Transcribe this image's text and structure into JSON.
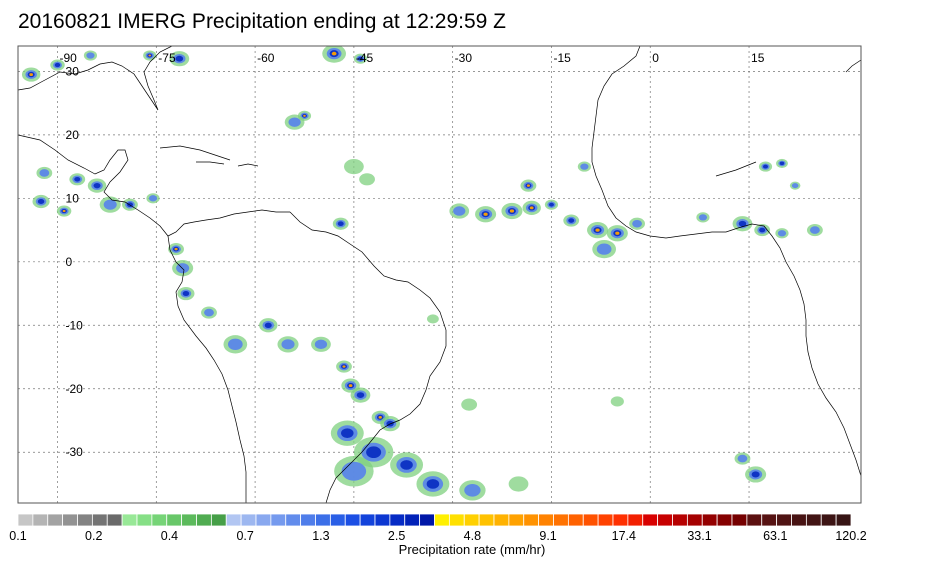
{
  "title": "20160821 IMERG Precipitation ending at 12:29:59 Z",
  "map": {
    "projection": "equirectangular",
    "lon_range": [
      -96,
      32
    ],
    "lat_range": [
      -38,
      34
    ],
    "lon_ticks": [
      {
        "value": -90,
        "label": "-90"
      },
      {
        "value": -75,
        "label": "-75"
      },
      {
        "value": -60,
        "label": "-60"
      },
      {
        "value": -45,
        "label": "-45"
      },
      {
        "value": -30,
        "label": "-30"
      },
      {
        "value": -15,
        "label": "-15"
      },
      {
        "value": 0,
        "label": "0"
      },
      {
        "value": 15,
        "label": "15"
      }
    ],
    "lat_ticks": [
      {
        "value": 30,
        "label": "30"
      },
      {
        "value": 20,
        "label": "20"
      },
      {
        "value": 10,
        "label": "10"
      },
      {
        "value": 0,
        "label": "0"
      },
      {
        "value": -10,
        "label": "-10"
      },
      {
        "value": -20,
        "label": "-20"
      },
      {
        "value": -30,
        "label": "-30"
      }
    ],
    "gridlines": "dotted",
    "coastline_color": "#000000"
  },
  "colorbar": {
    "title": "Precipitation rate (mm/hr)",
    "colors": [
      "#c6c6c6",
      "#b4b4b4",
      "#a3a3a3",
      "#929292",
      "#838383",
      "#747474",
      "#6a6a6a",
      "#98e897",
      "#86df86",
      "#76d477",
      "#68c769",
      "#5cba5c",
      "#50ac51",
      "#469f48",
      "#b2c6f2",
      "#9db7f0",
      "#89a8ef",
      "#759aee",
      "#628cec",
      "#4f7dea",
      "#3c6fe8",
      "#2a5fe6",
      "#1c4fe4",
      "#1343db",
      "#0c37d1",
      "#062bc5",
      "#0121b8",
      "#0018a8",
      "#fff000",
      "#ffe000",
      "#ffd000",
      "#ffc200",
      "#ffb200",
      "#ffa200",
      "#ff9200",
      "#ff8200",
      "#ff7200",
      "#ff6200",
      "#ff5200",
      "#ff4200",
      "#ff3000",
      "#f21f00",
      "#d80000",
      "#c70000",
      "#b60000",
      "#a50000",
      "#940000",
      "#850000",
      "#760000",
      "#5c1010",
      "#561212",
      "#4f1313",
      "#481313",
      "#421414",
      "#3c1414",
      "#361414"
    ],
    "tick_labels": [
      "0.1",
      "0.2",
      "0.4",
      "0.7",
      "1.3",
      "2.5",
      "4.8",
      "9.1",
      "17.4",
      "33.1",
      "63.1",
      "120.2"
    ]
  },
  "precip_cells": [
    {
      "lon": -94.0,
      "lat": 29.5,
      "r": 1.4,
      "level": 3
    },
    {
      "lon": -90.0,
      "lat": 31.0,
      "r": 1.1,
      "level": 2
    },
    {
      "lon": -85.0,
      "lat": 32.5,
      "r": 1.0,
      "level": 1
    },
    {
      "lon": -76.0,
      "lat": 32.5,
      "r": 1.0,
      "level": 3
    },
    {
      "lon": -71.5,
      "lat": 32.0,
      "r": 1.5,
      "level": 2
    },
    {
      "lon": -48.0,
      "lat": 32.8,
      "r": 1.8,
      "level": 3
    },
    {
      "lon": -44.0,
      "lat": 32.0,
      "r": 1.0,
      "level": 2
    },
    {
      "lon": -52.5,
      "lat": 23.0,
      "r": 1.0,
      "level": 3
    },
    {
      "lon": -54.0,
      "lat": 22.0,
      "r": 1.5,
      "level": 1
    },
    {
      "lon": -45.0,
      "lat": 15.0,
      "r": 1.5,
      "level": 0
    },
    {
      "lon": -43.0,
      "lat": 13.0,
      "r": 1.2,
      "level": 0
    },
    {
      "lon": -92.0,
      "lat": 14.0,
      "r": 1.2,
      "level": 1
    },
    {
      "lon": -87.0,
      "lat": 13.0,
      "r": 1.2,
      "level": 2
    },
    {
      "lon": -84.0,
      "lat": 12.0,
      "r": 1.4,
      "level": 2
    },
    {
      "lon": -92.5,
      "lat": 9.5,
      "r": 1.3,
      "level": 2
    },
    {
      "lon": -89.0,
      "lat": 8.0,
      "r": 1.1,
      "level": 3
    },
    {
      "lon": -82.0,
      "lat": 9.0,
      "r": 1.6,
      "level": 1
    },
    {
      "lon": -79.0,
      "lat": 9.0,
      "r": 1.2,
      "level": 2
    },
    {
      "lon": -75.5,
      "lat": 10.0,
      "r": 1.0,
      "level": 1
    },
    {
      "lon": -72.0,
      "lat": 2.0,
      "r": 1.2,
      "level": 3
    },
    {
      "lon": -71.0,
      "lat": -1.0,
      "r": 1.6,
      "level": 1
    },
    {
      "lon": -70.5,
      "lat": -5.0,
      "r": 1.3,
      "level": 2
    },
    {
      "lon": -67.0,
      "lat": -8.0,
      "r": 1.2,
      "level": 1
    },
    {
      "lon": -63.0,
      "lat": -13.0,
      "r": 1.8,
      "level": 1
    },
    {
      "lon": -58.0,
      "lat": -10.0,
      "r": 1.4,
      "level": 2
    },
    {
      "lon": -55.0,
      "lat": -13.0,
      "r": 1.6,
      "level": 1
    },
    {
      "lon": -47.0,
      "lat": 6.0,
      "r": 1.2,
      "level": 2
    },
    {
      "lon": -50.0,
      "lat": -13.0,
      "r": 1.5,
      "level": 1
    },
    {
      "lon": -46.5,
      "lat": -16.5,
      "r": 1.2,
      "level": 3
    },
    {
      "lon": -45.5,
      "lat": -19.5,
      "r": 1.4,
      "level": 3
    },
    {
      "lon": -44.0,
      "lat": -21.0,
      "r": 1.5,
      "level": 2
    },
    {
      "lon": -41.0,
      "lat": -24.5,
      "r": 1.3,
      "level": 3
    },
    {
      "lon": -39.5,
      "lat": -25.5,
      "r": 1.5,
      "level": 2
    },
    {
      "lon": -46.0,
      "lat": -27.0,
      "r": 2.5,
      "level": 2
    },
    {
      "lon": -42.0,
      "lat": -30.0,
      "r": 3.0,
      "level": 2
    },
    {
      "lon": -45.0,
      "lat": -33.0,
      "r": 3.0,
      "level": 1
    },
    {
      "lon": -37.0,
      "lat": -32.0,
      "r": 2.5,
      "level": 2
    },
    {
      "lon": -33.0,
      "lat": -35.0,
      "r": 2.5,
      "level": 2
    },
    {
      "lon": -27.0,
      "lat": -36.0,
      "r": 2.0,
      "level": 1
    },
    {
      "lon": -20.0,
      "lat": -35.0,
      "r": 1.5,
      "level": 0
    },
    {
      "lon": -29.0,
      "lat": 8.0,
      "r": 1.5,
      "level": 1
    },
    {
      "lon": -25.0,
      "lat": 7.5,
      "r": 1.6,
      "level": 3
    },
    {
      "lon": -21.0,
      "lat": 8.0,
      "r": 1.6,
      "level": 3
    },
    {
      "lon": -18.0,
      "lat": 8.5,
      "r": 1.4,
      "level": 3
    },
    {
      "lon": -18.5,
      "lat": 12.0,
      "r": 1.2,
      "level": 3
    },
    {
      "lon": -15.0,
      "lat": 9.0,
      "r": 1.0,
      "level": 2
    },
    {
      "lon": -12.0,
      "lat": 6.5,
      "r": 1.2,
      "level": 2
    },
    {
      "lon": -8.0,
      "lat": 5.0,
      "r": 1.6,
      "level": 3
    },
    {
      "lon": -5.0,
      "lat": 4.5,
      "r": 1.6,
      "level": 3
    },
    {
      "lon": -7.0,
      "lat": 2.0,
      "r": 1.8,
      "level": 1
    },
    {
      "lon": -2.0,
      "lat": 6.0,
      "r": 1.2,
      "level": 1
    },
    {
      "lon": 8.0,
      "lat": 7.0,
      "r": 1.0,
      "level": 1
    },
    {
      "lon": 14.0,
      "lat": 6.0,
      "r": 1.5,
      "level": 2
    },
    {
      "lon": 17.0,
      "lat": 5.0,
      "r": 1.2,
      "level": 2
    },
    {
      "lon": 20.0,
      "lat": 4.5,
      "r": 1.0,
      "level": 1
    },
    {
      "lon": 17.5,
      "lat": 15.0,
      "r": 1.0,
      "level": 2
    },
    {
      "lon": 20.0,
      "lat": 15.5,
      "r": 0.9,
      "level": 2
    },
    {
      "lon": 22.0,
      "lat": 12.0,
      "r": 0.8,
      "level": 1
    },
    {
      "lon": 25.0,
      "lat": 5.0,
      "r": 1.2,
      "level": 1
    },
    {
      "lon": 16.0,
      "lat": -33.5,
      "r": 1.6,
      "level": 2
    },
    {
      "lon": 14.0,
      "lat": -31.0,
      "r": 1.2,
      "level": 1
    },
    {
      "lon": -27.5,
      "lat": -22.5,
      "r": 1.2,
      "level": 0
    },
    {
      "lon": -5.0,
      "lat": -22.0,
      "r": 1.0,
      "level": 0
    },
    {
      "lon": -10.0,
      "lat": 15.0,
      "r": 1.0,
      "level": 1
    },
    {
      "lon": -33.0,
      "lat": -9.0,
      "r": 0.9,
      "level": 0
    }
  ]
}
